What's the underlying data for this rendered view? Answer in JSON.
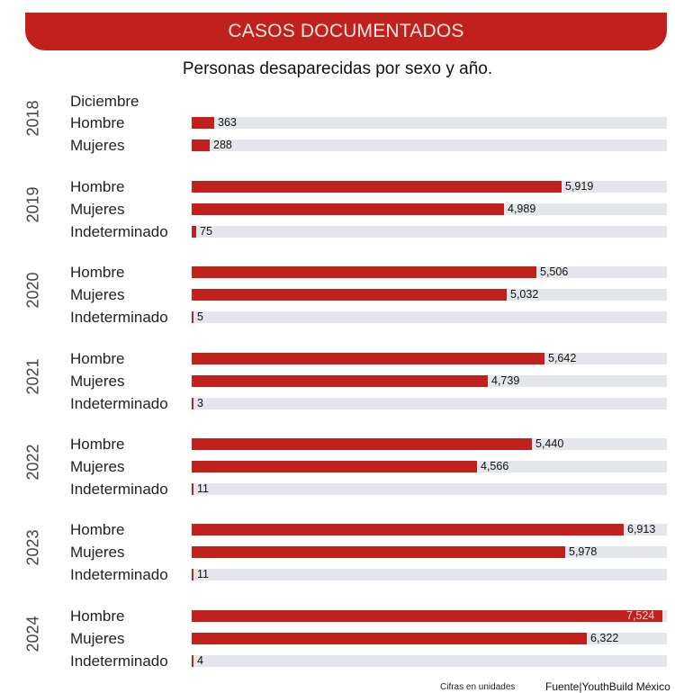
{
  "header": {
    "banner": "CASOS DOCUMENTADOS",
    "subtitle": "Personas desaparecidas por sexo y año."
  },
  "footer": {
    "note": "Cifras en unidades",
    "source": "Fuente|YouthBuild México"
  },
  "colors": {
    "bar": "#c0211d",
    "track": "#e3e6ea"
  },
  "chart_data": {
    "type": "bar",
    "orientation": "horizontal",
    "title": "Personas desaparecidas por sexo y año.",
    "header": "CASOS DOCUMENTADOS",
    "unit_note": "Cifras en unidades",
    "source": "Fuente|YouthBuild México",
    "groups": [
      {
        "year": "2018",
        "note": "Diciembre",
        "rows": [
          {
            "label": "Hombre",
            "value": 363,
            "text": "363"
          },
          {
            "label": "Mujeres",
            "value": 288,
            "text": "288"
          }
        ]
      },
      {
        "year": "2019",
        "rows": [
          {
            "label": "Hombre",
            "value": 5919,
            "text": "5,919"
          },
          {
            "label": "Mujeres",
            "value": 4989,
            "text": "4,989"
          },
          {
            "label": "Indeterminado",
            "value": 75,
            "text": "75"
          }
        ]
      },
      {
        "year": "2020",
        "rows": [
          {
            "label": "Hombre",
            "value": 5506,
            "text": "5,506"
          },
          {
            "label": "Mujeres",
            "value": 5032,
            "text": "5,032"
          },
          {
            "label": "Indeterminado",
            "value": 5,
            "text": "5"
          }
        ]
      },
      {
        "year": "2021",
        "rows": [
          {
            "label": "Hombre",
            "value": 5642,
            "text": "5,642"
          },
          {
            "label": "Mujeres",
            "value": 4739,
            "text": "4,739"
          },
          {
            "label": "Indeterminado",
            "value": 3,
            "text": "3"
          }
        ]
      },
      {
        "year": "2022",
        "rows": [
          {
            "label": "Hombre",
            "value": 5440,
            "text": "5,440"
          },
          {
            "label": "Mujeres",
            "value": 4566,
            "text": "4,566"
          },
          {
            "label": "Indeterminado",
            "value": 11,
            "text": "11"
          }
        ]
      },
      {
        "year": "2023",
        "rows": [
          {
            "label": "Hombre",
            "value": 6913,
            "text": "6,913"
          },
          {
            "label": "Mujeres",
            "value": 5978,
            "text": "5,978"
          },
          {
            "label": "Indeterminado",
            "value": 11,
            "text": "11"
          }
        ]
      },
      {
        "year": "2024",
        "rows": [
          {
            "label": "Hombre",
            "value": 7524,
            "text": "7,524"
          },
          {
            "label": "Mujeres",
            "value": 6322,
            "text": "6,322"
          },
          {
            "label": "Indeterminado",
            "value": 4,
            "text": "4"
          }
        ]
      }
    ],
    "xlim": [
      0,
      7600
    ],
    "grid": false,
    "legend": null
  }
}
